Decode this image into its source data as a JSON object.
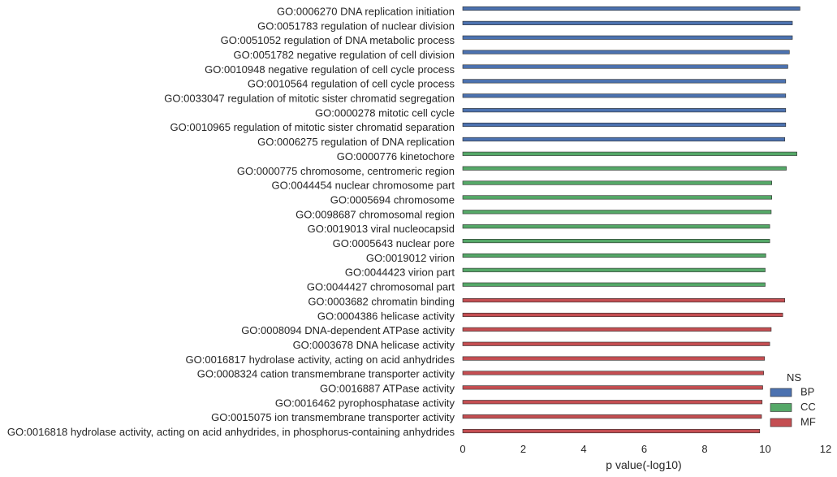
{
  "chart_data": {
    "type": "bar",
    "orientation": "horizontal",
    "xlabel": "p value(-log10)",
    "ylabel": "",
    "xlim": [
      0,
      12
    ],
    "xticks": [
      "0",
      "2",
      "4",
      "6",
      "8",
      "10",
      "12"
    ],
    "grid": false,
    "legend_placement": "bottom-right",
    "legend": {
      "title": "NS",
      "items": [
        {
          "name": "BP",
          "color": "#4c72b0"
        },
        {
          "name": "CC",
          "color": "#55a868"
        },
        {
          "name": "MF",
          "color": "#c44e52"
        }
      ]
    },
    "bars": [
      {
        "label": "GO:0006270 DNA replication initiation",
        "ns": "BP",
        "value": 11.15
      },
      {
        "label": "GO:0051783 regulation of nuclear division",
        "ns": "BP",
        "value": 10.9
      },
      {
        "label": "GO:0051052 regulation of DNA metabolic process",
        "ns": "BP",
        "value": 10.9
      },
      {
        "label": "GO:0051782 negative regulation of cell division",
        "ns": "BP",
        "value": 10.8
      },
      {
        "label": "GO:0010948 negative regulation of cell cycle process",
        "ns": "BP",
        "value": 10.75
      },
      {
        "label": "GO:0010564 regulation of cell cycle process",
        "ns": "BP",
        "value": 10.68
      },
      {
        "label": "GO:0033047 regulation of mitotic sister chromatid segregation",
        "ns": "BP",
        "value": 10.68
      },
      {
        "label": "GO:0000278 mitotic cell cycle",
        "ns": "BP",
        "value": 10.68
      },
      {
        "label": "GO:0010965 regulation of mitotic sister chromatid separation",
        "ns": "BP",
        "value": 10.68
      },
      {
        "label": "GO:0006275 regulation of DNA replication",
        "ns": "BP",
        "value": 10.65
      },
      {
        "label": "GO:0000776 kinetochore",
        "ns": "CC",
        "value": 11.05
      },
      {
        "label": "GO:0000775 chromosome, centromeric region",
        "ns": "CC",
        "value": 10.7
      },
      {
        "label": "GO:0044454 nuclear chromosome part",
        "ns": "CC",
        "value": 10.22
      },
      {
        "label": "GO:0005694 chromosome",
        "ns": "CC",
        "value": 10.22
      },
      {
        "label": "GO:0098687 chromosomal region",
        "ns": "CC",
        "value": 10.2
      },
      {
        "label": "GO:0019013 viral nucleocapsid",
        "ns": "CC",
        "value": 10.15
      },
      {
        "label": "GO:0005643 nuclear pore",
        "ns": "CC",
        "value": 10.15
      },
      {
        "label": "GO:0019012 virion",
        "ns": "CC",
        "value": 10.02
      },
      {
        "label": "GO:0044423 virion part",
        "ns": "CC",
        "value": 10.0
      },
      {
        "label": "GO:0044427 chromosomal part",
        "ns": "CC",
        "value": 10.0
      },
      {
        "label": "GO:0003682 chromatin binding",
        "ns": "MF",
        "value": 10.65
      },
      {
        "label": "GO:0004386 helicase activity",
        "ns": "MF",
        "value": 10.58
      },
      {
        "label": "GO:0008094 DNA-dependent ATPase activity",
        "ns": "MF",
        "value": 10.2
      },
      {
        "label": "GO:0003678 DNA helicase activity",
        "ns": "MF",
        "value": 10.15
      },
      {
        "label": "GO:0016817 hydrolase activity, acting on acid anhydrides",
        "ns": "MF",
        "value": 9.98
      },
      {
        "label": "GO:0008324 cation transmembrane transporter activity",
        "ns": "MF",
        "value": 9.95
      },
      {
        "label": "GO:0016887 ATPase activity",
        "ns": "MF",
        "value": 9.92
      },
      {
        "label": "GO:0016462 pyrophosphatase activity",
        "ns": "MF",
        "value": 9.9
      },
      {
        "label": "GO:0015075 ion transmembrane transporter activity",
        "ns": "MF",
        "value": 9.88
      },
      {
        "label": "GO:0016818 hydrolase activity, acting on acid anhydrides, in phosphorus-containing anhydrides",
        "ns": "MF",
        "value": 9.82
      }
    ]
  }
}
